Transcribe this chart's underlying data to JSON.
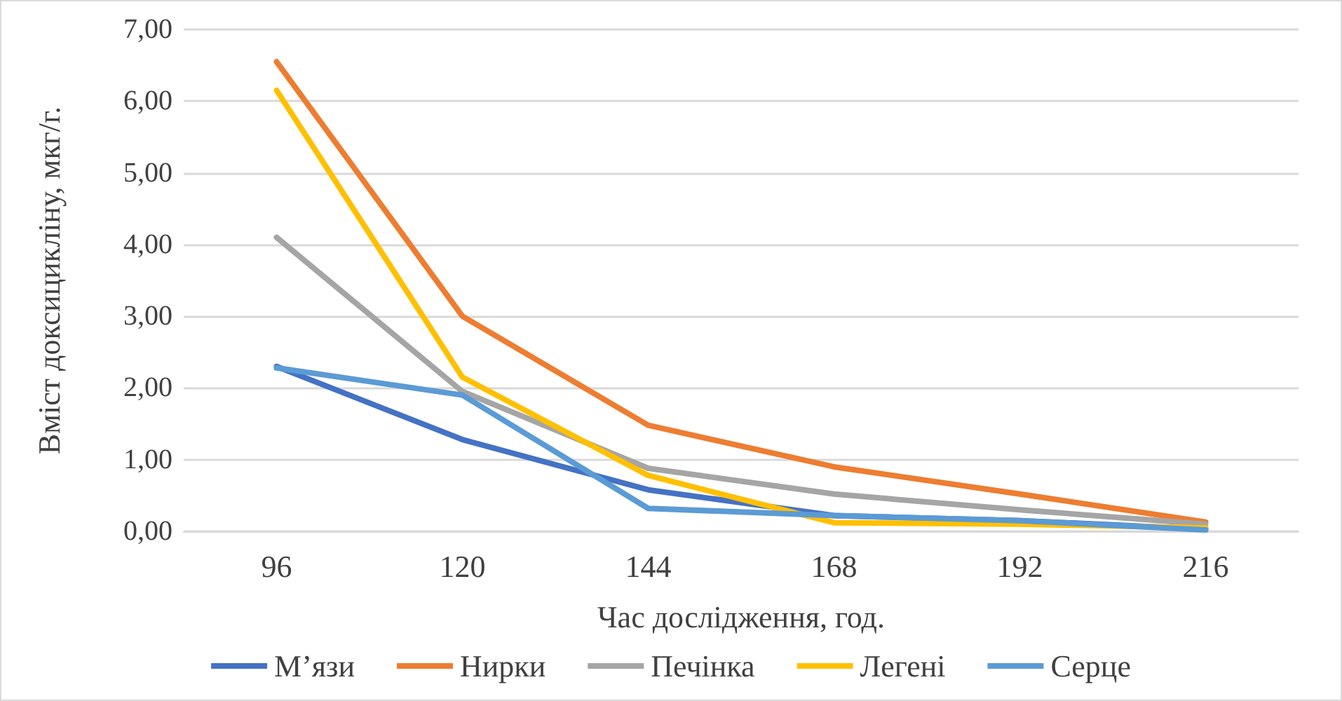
{
  "chart_data": {
    "type": "line",
    "xlabel": "Час дослідження, год.",
    "ylabel": "Вміст доксицикліну, мкг/г.",
    "categories": [
      "96",
      "120",
      "144",
      "168",
      "192",
      "216"
    ],
    "series": [
      {
        "name": "М’язи",
        "color": "#4472c4",
        "values": [
          2.3,
          1.28,
          0.58,
          0.22,
          0.15,
          0.03
        ]
      },
      {
        "name": "Нирки",
        "color": "#ed7d31",
        "values": [
          6.55,
          3.0,
          1.48,
          0.9,
          0.52,
          0.13
        ]
      },
      {
        "name": "Печінка",
        "color": "#a5a5a5",
        "values": [
          4.1,
          1.95,
          0.88,
          0.52,
          0.3,
          0.1
        ]
      },
      {
        "name": "Легені",
        "color": "#ffc000",
        "values": [
          6.15,
          2.15,
          0.78,
          0.12,
          0.1,
          0.05
        ]
      },
      {
        "name": "Серце",
        "color": "#5b9bd5",
        "values": [
          2.28,
          1.9,
          0.32,
          0.22,
          0.15,
          0.02
        ]
      }
    ],
    "ylim": [
      0,
      7
    ],
    "yticks": [
      {
        "value": 0,
        "label": "0,00"
      },
      {
        "value": 1,
        "label": "1,00"
      },
      {
        "value": 2,
        "label": "2,00"
      },
      {
        "value": 3,
        "label": "3,00"
      },
      {
        "value": 4,
        "label": "4,00"
      },
      {
        "value": 5,
        "label": "5,00"
      },
      {
        "value": 6,
        "label": "6,00"
      },
      {
        "value": 7,
        "label": "7,00"
      }
    ],
    "grid": "y",
    "legend": "bottom",
    "marker": "none",
    "line_style": "solid"
  }
}
